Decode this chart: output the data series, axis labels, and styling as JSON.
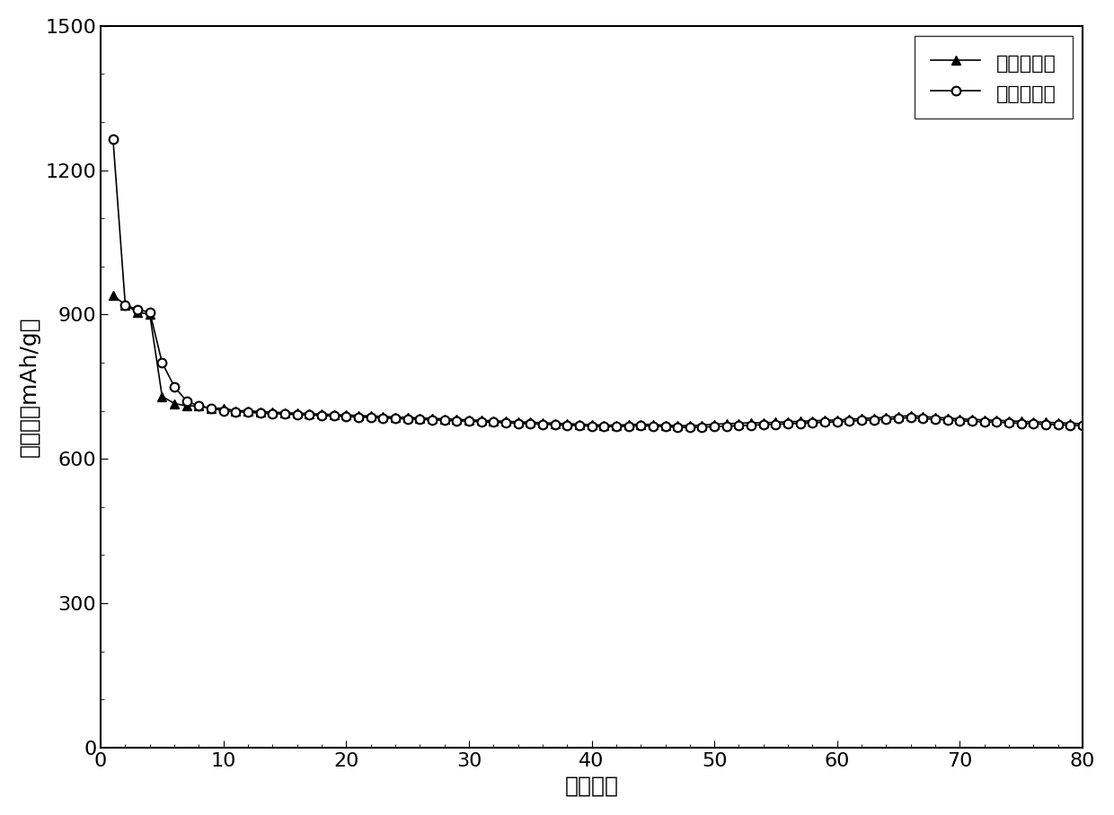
{
  "charge_x": [
    1,
    2,
    3,
    4,
    5,
    6,
    7,
    8,
    9,
    10,
    11,
    12,
    13,
    14,
    15,
    16,
    17,
    18,
    19,
    20,
    21,
    22,
    23,
    24,
    25,
    26,
    27,
    28,
    29,
    30,
    31,
    32,
    33,
    34,
    35,
    36,
    37,
    38,
    39,
    40,
    41,
    42,
    43,
    44,
    45,
    46,
    47,
    48,
    49,
    50,
    51,
    52,
    53,
    54,
    55,
    56,
    57,
    58,
    59,
    60,
    61,
    62,
    63,
    64,
    65,
    66,
    67,
    68,
    69,
    70,
    71,
    72,
    73,
    74,
    75,
    76,
    77,
    78,
    79,
    80
  ],
  "charge_y": [
    940,
    920,
    905,
    900,
    730,
    715,
    710,
    710,
    705,
    705,
    700,
    700,
    698,
    697,
    696,
    695,
    694,
    693,
    692,
    691,
    690,
    689,
    688,
    687,
    686,
    685,
    684,
    683,
    682,
    681,
    680,
    679,
    678,
    677,
    676,
    675,
    674,
    673,
    672,
    671,
    670,
    670,
    671,
    672,
    671,
    670,
    669,
    669,
    670,
    672,
    673,
    674,
    675,
    675,
    676,
    677,
    678,
    679,
    680,
    681,
    682,
    684,
    685,
    686,
    688,
    690,
    688,
    686,
    685,
    683,
    682,
    681,
    680,
    679,
    678,
    677,
    676,
    675,
    674,
    673
  ],
  "discharge_x": [
    1,
    2,
    3,
    4,
    5,
    6,
    7,
    8,
    9,
    10,
    11,
    12,
    13,
    14,
    15,
    16,
    17,
    18,
    19,
    20,
    21,
    22,
    23,
    24,
    25,
    26,
    27,
    28,
    29,
    30,
    31,
    32,
    33,
    34,
    35,
    36,
    37,
    38,
    39,
    40,
    41,
    42,
    43,
    44,
    45,
    46,
    47,
    48,
    49,
    50,
    51,
    52,
    53,
    54,
    55,
    56,
    57,
    58,
    59,
    60,
    61,
    62,
    63,
    64,
    65,
    66,
    67,
    68,
    69,
    70,
    71,
    72,
    73,
    74,
    75,
    76,
    77,
    78,
    79,
    80
  ],
  "discharge_y": [
    1265,
    920,
    910,
    905,
    800,
    750,
    720,
    710,
    705,
    700,
    698,
    697,
    695,
    694,
    693,
    692,
    691,
    690,
    689,
    688,
    687,
    686,
    685,
    684,
    683,
    682,
    681,
    680,
    679,
    678,
    677,
    676,
    675,
    674,
    673,
    672,
    671,
    670,
    669,
    668,
    667,
    667,
    668,
    669,
    668,
    667,
    666,
    665,
    666,
    667,
    668,
    669,
    670,
    671,
    672,
    673,
    674,
    675,
    676,
    677,
    678,
    680,
    681,
    682,
    684,
    686,
    684,
    682,
    681,
    679,
    678,
    677,
    676,
    675,
    674,
    673,
    672,
    671,
    670,
    669
  ],
  "xlabel": "循环次数",
  "ylabel": "比容量（mAh/g）",
  "xlim": [
    0,
    80
  ],
  "ylim": [
    0,
    1500
  ],
  "xticks": [
    0,
    10,
    20,
    30,
    40,
    50,
    60,
    70,
    80
  ],
  "yticks": [
    0,
    300,
    600,
    900,
    1200,
    1500
  ],
  "legend_charge": "充电比容量",
  "legend_discharge": "放电比容量",
  "line_color": "#000000",
  "marker_charge": "^",
  "marker_discharge": "o",
  "markersize": 7,
  "linewidth": 1.2,
  "label_fontsize": 18,
  "tick_fontsize": 16,
  "legend_fontsize": 16,
  "background_color": "#ffffff"
}
